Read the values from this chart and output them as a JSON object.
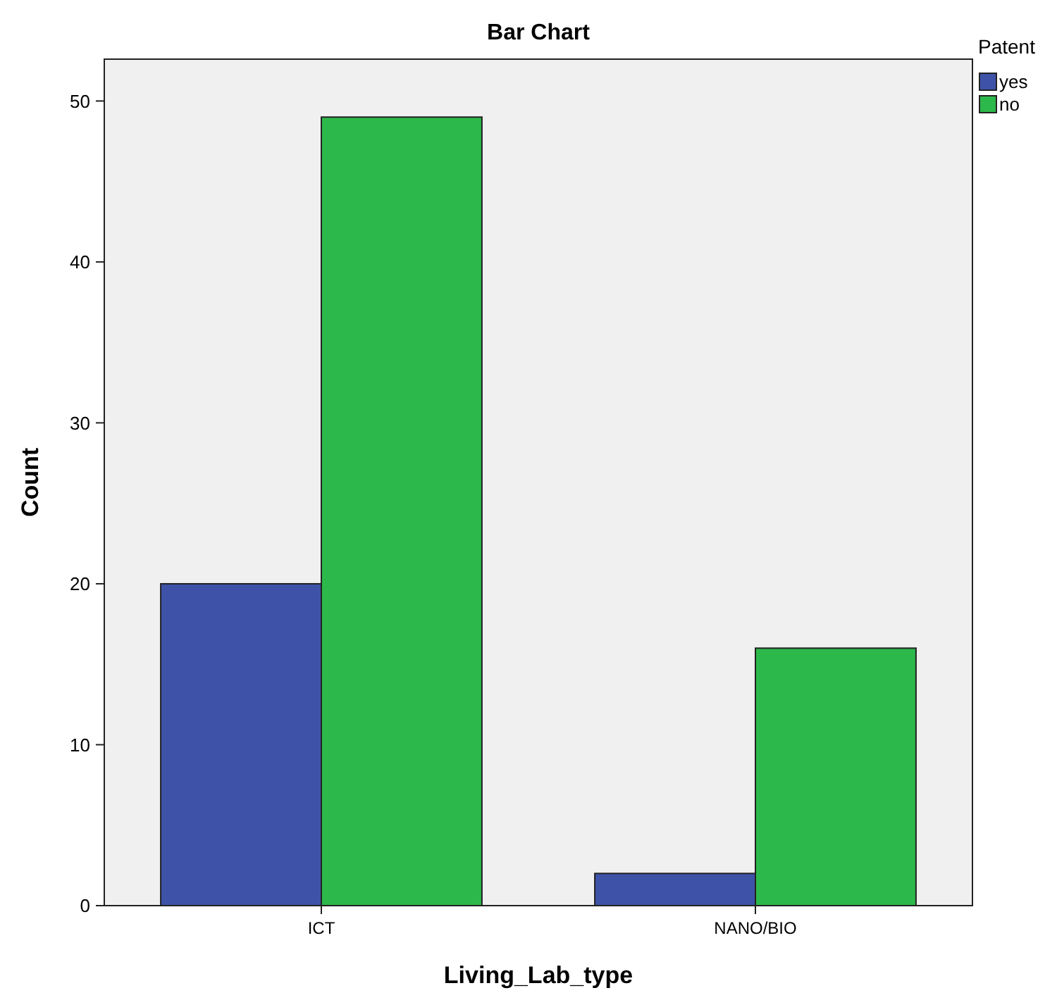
{
  "chart_data": {
    "type": "bar",
    "title": "Bar Chart",
    "xlabel": "Living_Lab_type",
    "ylabel": "Count",
    "legend_title": "Patent",
    "categories": [
      "ICT",
      "NANO/BIO"
    ],
    "series": [
      {
        "name": "yes",
        "color": "#3e53a8",
        "values": [
          20,
          2
        ]
      },
      {
        "name": "no",
        "color": "#2db84b",
        "values": [
          49,
          16
        ]
      }
    ],
    "ylim": [
      0,
      52.6
    ],
    "yticks": [
      0,
      10,
      20,
      30,
      40,
      50
    ],
    "grid": false,
    "legend": "right"
  }
}
